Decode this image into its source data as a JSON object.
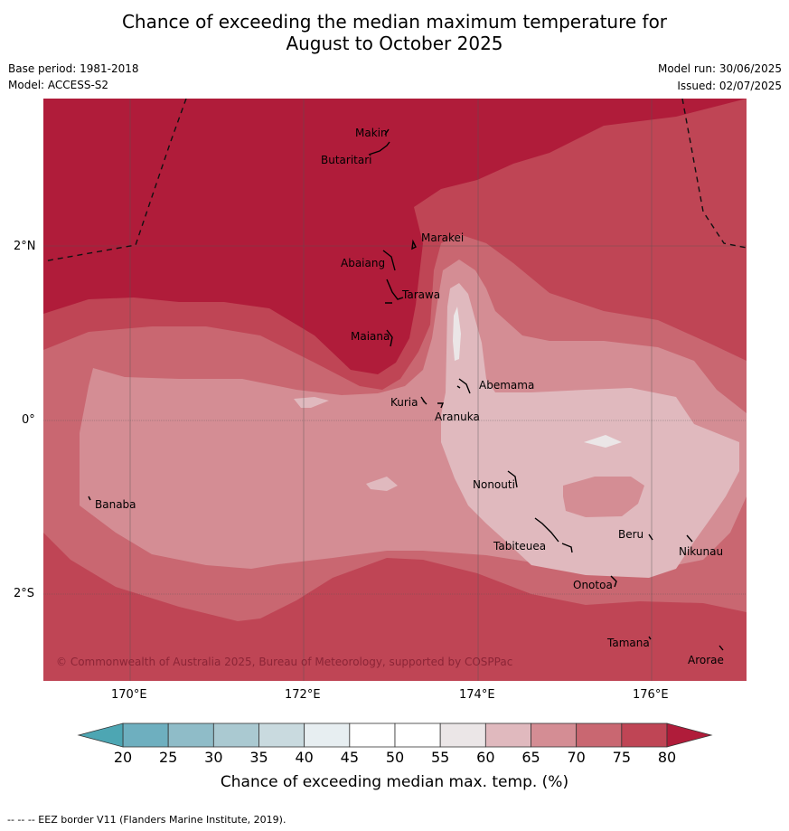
{
  "title": {
    "line1": "Chance of exceeding the median maximum temperature for",
    "line2": "August to October 2025"
  },
  "meta": {
    "base_period": "Base period: 1981-2018",
    "model": "Model: ACCESS-S2",
    "model_run": "Model run: 30/06/2025",
    "issued": "Issued: 02/07/2025"
  },
  "map": {
    "copyright": "© Commonwealth of Australia 2025, Bureau of Meteorology, supported by COSPPac",
    "lon_labels": [
      "170°E",
      "172°E",
      "174°E",
      "176°E"
    ],
    "lat_labels": [
      "2°N",
      "0°",
      "2°S"
    ],
    "places": {
      "makin": "Makin",
      "butaritari": "Butaritari",
      "marakei": "Marakei",
      "abaiang": "Abaiang",
      "tarawa": "Tarawa",
      "maiana": "Maiana",
      "abemama": "Abemama",
      "kuria": "Kuria",
      "aranuka": "Aranuka",
      "banaba": "Banaba",
      "nonouti": "Nonouti",
      "beru": "Beru",
      "tabiteuea": "Tabiteuea",
      "nikunau": "Nikunau",
      "onotoa": "Onotoa",
      "tamana": "Tamana",
      "arorae": "Arorae"
    }
  },
  "colorbar": {
    "ticks": [
      "20",
      "25",
      "30",
      "35",
      "40",
      "45",
      "50",
      "55",
      "60",
      "65",
      "70",
      "75",
      "80"
    ],
    "colors": [
      "#6eafbf",
      "#8fbcc8",
      "#aac9d1",
      "#c9dadf",
      "#e7eef1",
      "#ffffff",
      "#ffffff",
      "#ebe6e7",
      "#e0b9be",
      "#d48d94",
      "#c96771",
      "#bf4555"
    ],
    "under_color": "#4da6b3",
    "over_color": "#b01c3a",
    "label": "Chance of exceeding median max. temp. (%)"
  },
  "footer": "--  --  -- EEZ border V11 (Flanders Marine Institute, 2019)."
}
